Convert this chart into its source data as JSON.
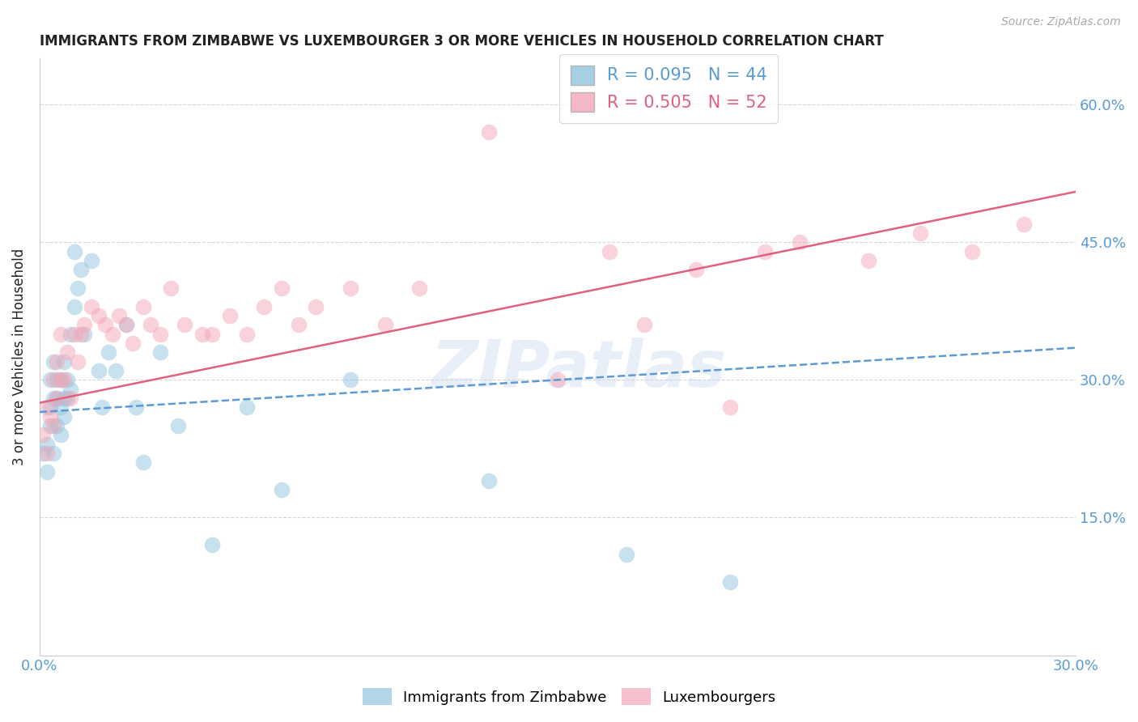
{
  "title": "IMMIGRANTS FROM ZIMBABWE VS LUXEMBOURGER 3 OR MORE VEHICLES IN HOUSEHOLD CORRELATION CHART",
  "source": "Source: ZipAtlas.com",
  "ylabel": "3 or more Vehicles in Household",
  "watermark": "ZIPatlas",
  "xlim": [
    0.0,
    0.3
  ],
  "ylim": [
    0.0,
    0.65
  ],
  "xticks": [
    0.0,
    0.05,
    0.1,
    0.15,
    0.2,
    0.25,
    0.3
  ],
  "xticklabels": [
    "0.0%",
    "",
    "",
    "",
    "",
    "",
    "30.0%"
  ],
  "yticks": [
    0.0,
    0.15,
    0.3,
    0.45,
    0.6
  ],
  "yticklabels": [
    "",
    "15.0%",
    "30.0%",
    "45.0%",
    "60.0%"
  ],
  "series1_label": "Immigrants from Zimbabwe",
  "series2_label": "Luxembourgers",
  "R1": "0.095",
  "N1": "44",
  "R2": "0.505",
  "N2": "52",
  "color1": "#92c5de",
  "color2": "#f4a6b8",
  "trend_color1": "#5b9bd5",
  "trend_color2": "#e06080",
  "zimbabwe_x": [
    0.001,
    0.002,
    0.002,
    0.003,
    0.003,
    0.003,
    0.004,
    0.004,
    0.004,
    0.005,
    0.005,
    0.005,
    0.006,
    0.006,
    0.006,
    0.007,
    0.007,
    0.007,
    0.008,
    0.008,
    0.009,
    0.009,
    0.01,
    0.01,
    0.011,
    0.012,
    0.013,
    0.015,
    0.017,
    0.018,
    0.02,
    0.022,
    0.025,
    0.028,
    0.03,
    0.035,
    0.04,
    0.05,
    0.06,
    0.07,
    0.09,
    0.13,
    0.17,
    0.2
  ],
  "zimbabwe_y": [
    0.22,
    0.2,
    0.23,
    0.25,
    0.27,
    0.3,
    0.28,
    0.32,
    0.22,
    0.25,
    0.28,
    0.3,
    0.24,
    0.27,
    0.3,
    0.28,
    0.32,
    0.26,
    0.3,
    0.28,
    0.35,
    0.29,
    0.38,
    0.44,
    0.4,
    0.42,
    0.35,
    0.43,
    0.31,
    0.27,
    0.33,
    0.31,
    0.36,
    0.27,
    0.21,
    0.33,
    0.25,
    0.12,
    0.27,
    0.18,
    0.3,
    0.19,
    0.11,
    0.08
  ],
  "luxembourger_x": [
    0.001,
    0.002,
    0.002,
    0.003,
    0.004,
    0.004,
    0.005,
    0.005,
    0.006,
    0.006,
    0.007,
    0.008,
    0.009,
    0.01,
    0.011,
    0.012,
    0.013,
    0.015,
    0.017,
    0.019,
    0.021,
    0.023,
    0.025,
    0.027,
    0.03,
    0.032,
    0.035,
    0.038,
    0.042,
    0.047,
    0.05,
    0.055,
    0.06,
    0.065,
    0.07,
    0.075,
    0.08,
    0.09,
    0.1,
    0.11,
    0.13,
    0.15,
    0.165,
    0.175,
    0.19,
    0.2,
    0.21,
    0.22,
    0.24,
    0.255,
    0.27,
    0.285
  ],
  "luxembourger_y": [
    0.24,
    0.22,
    0.27,
    0.26,
    0.3,
    0.25,
    0.32,
    0.28,
    0.3,
    0.35,
    0.3,
    0.33,
    0.28,
    0.35,
    0.32,
    0.35,
    0.36,
    0.38,
    0.37,
    0.36,
    0.35,
    0.37,
    0.36,
    0.34,
    0.38,
    0.36,
    0.35,
    0.4,
    0.36,
    0.35,
    0.35,
    0.37,
    0.35,
    0.38,
    0.4,
    0.36,
    0.38,
    0.4,
    0.36,
    0.4,
    0.57,
    0.3,
    0.44,
    0.36,
    0.42,
    0.27,
    0.44,
    0.45,
    0.43,
    0.46,
    0.44,
    0.47
  ],
  "background_color": "#ffffff",
  "grid_color": "#cccccc",
  "title_color": "#222222",
  "tick_label_color": "#5b9bd5"
}
